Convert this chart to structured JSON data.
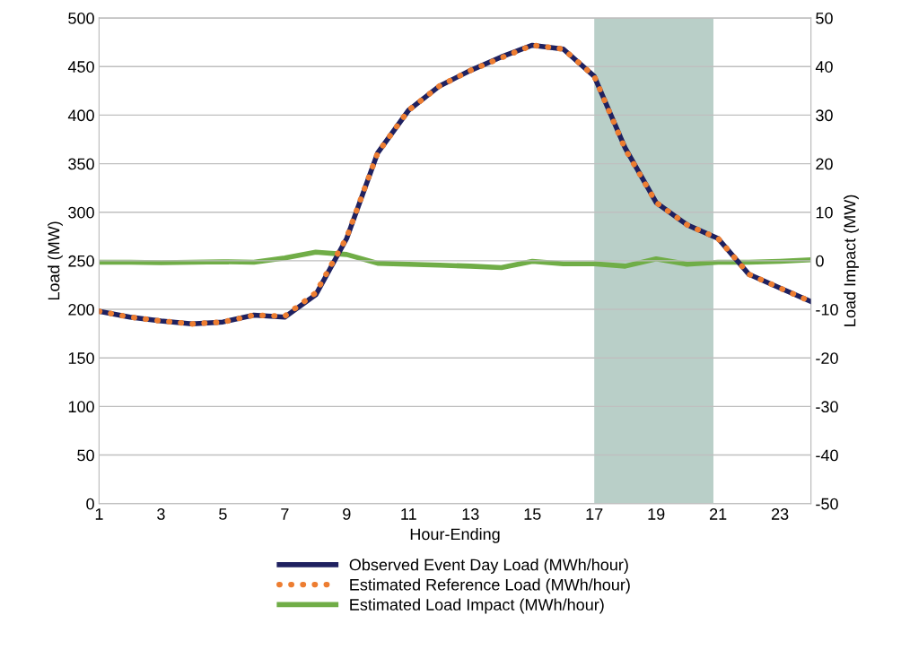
{
  "chart_data": {
    "type": "line",
    "xlabel": "Hour-Ending",
    "ylabel": "Load (MW)",
    "y2label": "Load Impact (MW)",
    "x": [
      1,
      2,
      3,
      4,
      5,
      6,
      7,
      8,
      9,
      10,
      11,
      12,
      13,
      14,
      15,
      16,
      17,
      18,
      19,
      20,
      21,
      22,
      23,
      24
    ],
    "series": [
      {
        "name": "Observed Event Day Load (MWh/hour)",
        "color": "#1f2160",
        "line_style": "solid",
        "values": [
          198,
          192,
          188,
          185,
          187,
          194,
          192,
          215,
          273,
          361,
          405,
          430,
          446,
          460,
          472,
          468,
          440,
          366,
          310,
          287,
          273,
          236,
          222,
          208
        ]
      },
      {
        "name": "Estimated Reference Load (MWh/hour)",
        "color": "#ed7d31",
        "line_style": "dotted",
        "values": [
          198,
          192,
          188,
          185,
          187,
          194,
          193,
          217,
          274,
          361,
          405,
          430,
          446,
          459,
          472,
          468,
          440,
          365,
          310,
          287,
          273,
          236,
          222,
          208
        ]
      },
      {
        "name": "Estimated Load Impact (MWh/hour)",
        "color": "#70ad47",
        "line_style": "solid",
        "axis": "y2",
        "values": [
          -0.3,
          -0.3,
          -0.4,
          -0.3,
          -0.2,
          -0.3,
          0.6,
          1.8,
          1.3,
          -0.5,
          -0.7,
          -0.9,
          -1.1,
          -1.4,
          -0.1,
          -0.6,
          -0.6,
          -1.1,
          0.4,
          -0.7,
          -0.3,
          -0.3,
          -0.1,
          0.2
        ]
      }
    ],
    "xlim": [
      1,
      24
    ],
    "xticks": [
      1,
      3,
      5,
      7,
      9,
      11,
      13,
      15,
      17,
      19,
      21,
      23
    ],
    "ylim": [
      0,
      500
    ],
    "yticks": [
      0,
      50,
      100,
      150,
      200,
      250,
      300,
      350,
      400,
      450,
      500
    ],
    "y2lim": [
      -50,
      50
    ],
    "y2ticks": [
      -50,
      -40,
      -30,
      -20,
      -10,
      0,
      10,
      20,
      30,
      40,
      50
    ],
    "bands": [
      {
        "axis": "x",
        "from": 17,
        "to": 20.85,
        "color": "#b9cfc8"
      }
    ],
    "grid": "y",
    "legend": "bottom",
    "marker": "none"
  }
}
